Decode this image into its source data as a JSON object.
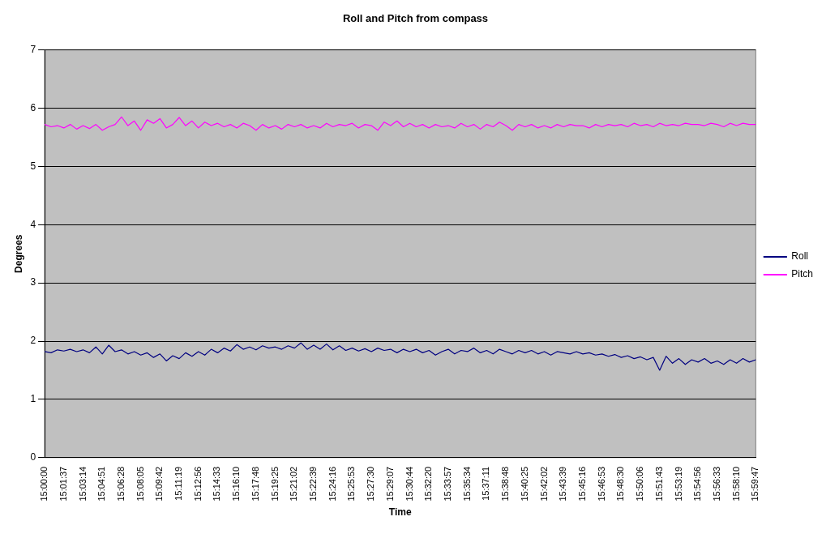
{
  "chart_data": {
    "type": "line",
    "title": "Roll and Pitch from compass",
    "xlabel": "Time",
    "ylabel": "Degrees",
    "categories": [
      "15:00:00",
      null,
      null,
      "15:01:37",
      null,
      null,
      "15:03:14",
      null,
      null,
      "15:04:51",
      null,
      null,
      "15:06:28",
      null,
      null,
      "15:08:05",
      null,
      null,
      "15:09:42",
      null,
      null,
      "15:11:19",
      null,
      null,
      "15:12:56",
      null,
      null,
      "15:14:33",
      null,
      null,
      "15:16:10",
      null,
      null,
      "15:17:48",
      null,
      null,
      "15:19:25",
      null,
      null,
      "15:21:02",
      null,
      null,
      "15:22:39",
      null,
      null,
      "15:24:16",
      null,
      null,
      "15:25:53",
      null,
      null,
      "15:27:30",
      null,
      null,
      "15:29:07",
      null,
      null,
      "15:30:44",
      null,
      null,
      "15:32:20",
      null,
      null,
      "15:33:57",
      null,
      null,
      "15:35:34",
      null,
      null,
      "15:37:11",
      null,
      null,
      "15:38:48",
      null,
      null,
      "15:40:25",
      null,
      null,
      "15:42:02",
      null,
      null,
      "15:43:39",
      null,
      null,
      "15:45:16",
      null,
      null,
      "15:46:53",
      null,
      null,
      "15:48:30",
      null,
      null,
      "15:50:06",
      null,
      null,
      "15:51:43",
      null,
      null,
      "15:53:19",
      null,
      null,
      "15:54:56",
      null,
      null,
      "15:56:33",
      null,
      null,
      "15:58:10",
      null,
      null,
      "15:59:47"
    ],
    "series": [
      {
        "name": "Roll",
        "color": "#000080",
        "values": [
          1.82,
          1.8,
          1.85,
          1.83,
          1.86,
          1.82,
          1.85,
          1.8,
          1.9,
          1.78,
          1.93,
          1.82,
          1.85,
          1.78,
          1.82,
          1.76,
          1.8,
          1.72,
          1.78,
          1.66,
          1.75,
          1.7,
          1.8,
          1.74,
          1.82,
          1.76,
          1.86,
          1.8,
          1.88,
          1.83,
          1.94,
          1.86,
          1.9,
          1.85,
          1.92,
          1.88,
          1.9,
          1.86,
          1.92,
          1.88,
          1.97,
          1.86,
          1.93,
          1.86,
          1.95,
          1.85,
          1.92,
          1.84,
          1.88,
          1.83,
          1.87,
          1.82,
          1.88,
          1.84,
          1.86,
          1.8,
          1.86,
          1.82,
          1.86,
          1.8,
          1.84,
          1.76,
          1.82,
          1.86,
          1.78,
          1.84,
          1.82,
          1.88,
          1.8,
          1.84,
          1.78,
          1.86,
          1.82,
          1.78,
          1.84,
          1.8,
          1.84,
          1.78,
          1.82,
          1.76,
          1.82,
          1.8,
          1.78,
          1.82,
          1.78,
          1.8,
          1.76,
          1.78,
          1.74,
          1.77,
          1.72,
          1.75,
          1.7,
          1.73,
          1.68,
          1.72,
          1.5,
          1.74,
          1.62,
          1.7,
          1.6,
          1.68,
          1.64,
          1.7,
          1.62,
          1.66,
          1.6,
          1.68,
          1.62,
          1.7,
          1.64,
          1.68
        ]
      },
      {
        "name": "Pitch",
        "color": "#ff00ff",
        "values": [
          5.72,
          5.68,
          5.7,
          5.66,
          5.72,
          5.64,
          5.7,
          5.65,
          5.72,
          5.62,
          5.68,
          5.72,
          5.85,
          5.7,
          5.78,
          5.62,
          5.8,
          5.74,
          5.82,
          5.66,
          5.72,
          5.84,
          5.7,
          5.78,
          5.66,
          5.76,
          5.7,
          5.74,
          5.68,
          5.72,
          5.66,
          5.74,
          5.7,
          5.62,
          5.72,
          5.66,
          5.7,
          5.64,
          5.72,
          5.68,
          5.72,
          5.66,
          5.7,
          5.66,
          5.74,
          5.68,
          5.72,
          5.7,
          5.74,
          5.66,
          5.72,
          5.7,
          5.62,
          5.76,
          5.7,
          5.78,
          5.68,
          5.74,
          5.68,
          5.72,
          5.66,
          5.72,
          5.68,
          5.7,
          5.66,
          5.74,
          5.68,
          5.72,
          5.64,
          5.72,
          5.68,
          5.76,
          5.7,
          5.62,
          5.72,
          5.68,
          5.72,
          5.66,
          5.7,
          5.66,
          5.72,
          5.68,
          5.72,
          5.7,
          5.7,
          5.66,
          5.72,
          5.68,
          5.72,
          5.7,
          5.72,
          5.68,
          5.74,
          5.7,
          5.72,
          5.68,
          5.74,
          5.7,
          5.72,
          5.7,
          5.74,
          5.72,
          5.72,
          5.7,
          5.74,
          5.72,
          5.68,
          5.74,
          5.7,
          5.74,
          5.72,
          5.72
        ]
      }
    ],
    "ylim": [
      0,
      7
    ],
    "yticks": [
      0,
      1,
      2,
      3,
      4,
      5,
      6,
      7
    ],
    "grid": "y",
    "legend": "right",
    "marker": "none",
    "line_style": "solid"
  }
}
